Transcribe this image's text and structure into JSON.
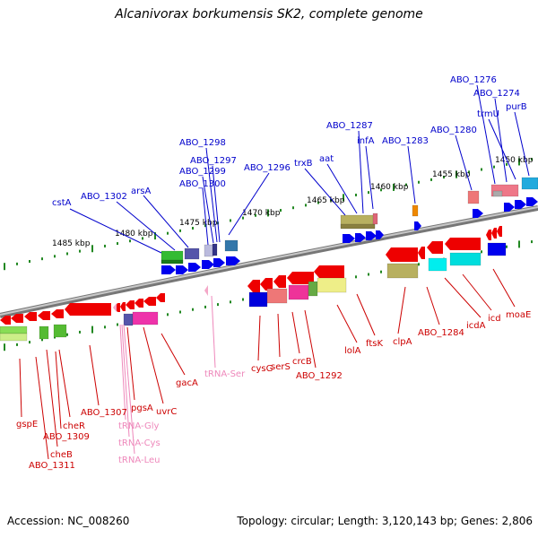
{
  "title": "Alcanivorax borkumensis SK2, complete genome",
  "footer": {
    "accession": "Accession: NC_008260",
    "summary": "Topology: circular; Length: 3,120,143 bp; Genes: 2,806"
  },
  "colors": {
    "forward_label": "#0000cc",
    "reverse_label": "#cc0000",
    "rna_label": "#ee88bb",
    "backbone": "#888888",
    "tick": "#228822"
  },
  "kbp_labels": [
    "1485 kbp",
    "1480 kbp",
    "1475 kbp",
    "1470 kbp",
    "1465 kbp",
    "1460 kbp",
    "1455 kbp",
    "1450 kbp"
  ],
  "forward_genes": [
    "cstA",
    "ABO_1302",
    "arsA",
    "ABO_1300",
    "ABO_1299",
    "ABO_1298",
    "ABO_1297",
    "ABO_1296",
    "trxB",
    "aat",
    "ABO_1287",
    "infA",
    "ABO_1283",
    "ABO_1280",
    "ABO_1276",
    "ABO_1274",
    "trmU",
    "purB"
  ],
  "reverse_genes": [
    "gspE",
    "ABO_1311",
    "cheB",
    "ABO_1309",
    "cheR",
    "ABO_1307",
    "pgsA",
    "uvrC",
    "gacA",
    "cysG",
    "serS",
    "crcB",
    "ABO_1292",
    "lolA",
    "ftsK",
    "clpA",
    "ABO_1284",
    "icdA",
    "icd",
    "moaE"
  ],
  "rna_genes": [
    "tRNA-Gly",
    "tRNA-Cys",
    "tRNA-Leu",
    "tRNA-Ser"
  ]
}
